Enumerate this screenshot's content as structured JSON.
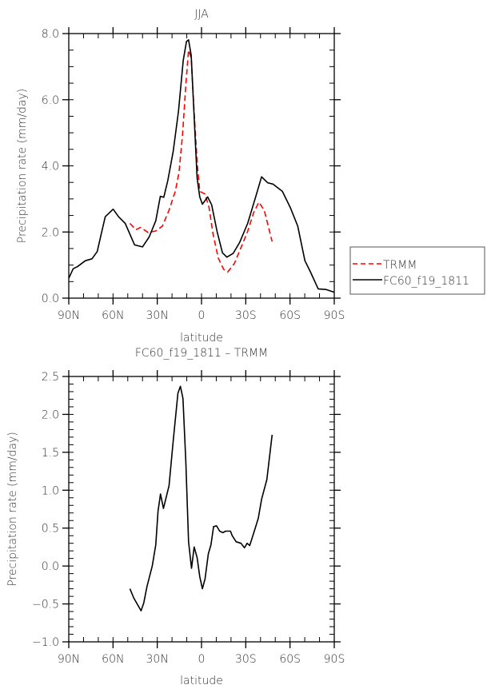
{
  "chart_data": [
    {
      "type": "line",
      "title": "JJA",
      "xlabel": "latitude",
      "ylabel": "Precipitation rate (mm/day)",
      "xlim": [
        90,
        -90
      ],
      "ylim": [
        0,
        8
      ],
      "xticks": [
        90,
        60,
        30,
        0,
        -30,
        -60,
        -90
      ],
      "xtick_labels": [
        "90N",
        "60N",
        "30N",
        "0",
        "30S",
        "60S",
        "90S"
      ],
      "yticks": [
        0,
        2,
        4,
        6,
        8
      ],
      "ytick_labels": [
        "0.0",
        "2.0",
        "4.0",
        "6.0",
        "8.0"
      ],
      "legend_position": "right",
      "series": [
        {
          "name": "TRMM",
          "color": "#ff0000",
          "dash": "dashed",
          "x": [
            48.5,
            44.5,
            41.3,
            36.4,
            31,
            26.5,
            22,
            17.8,
            15.3,
            12.9,
            10.6,
            8.8,
            7,
            4.8,
            3,
            1.2,
            -2.4,
            -5.1,
            -7.8,
            -11.4,
            -15,
            -17.8,
            -22.3,
            -26.8,
            -31.3,
            -35.3,
            -38.9,
            -42.5,
            -47.9
          ],
          "y": [
            2.26,
            2.07,
            2.14,
            1.99,
            2.03,
            2.18,
            2.66,
            3.23,
            3.79,
            4.92,
            6.45,
            7.5,
            7.26,
            5.48,
            4.11,
            3.23,
            3.15,
            2.74,
            1.94,
            1.21,
            0.87,
            0.79,
            1.05,
            1.53,
            2.02,
            2.58,
            2.9,
            2.66,
            1.71
          ]
        },
        {
          "name": "FC60_f19_1811",
          "color": "#000000",
          "dash": "solid",
          "x": [
            90,
            87,
            84.2,
            78.8,
            74.3,
            70.7,
            68,
            65.3,
            59.9,
            56.2,
            51.7,
            45.4,
            40,
            35.5,
            31,
            27.9,
            25.6,
            22.9,
            19.2,
            15.6,
            12.4,
            10.2,
            8.8,
            7,
            4.8,
            3,
            1.2,
            -0.6,
            -4.2,
            -6.9,
            -10.5,
            -14.2,
            -17.2,
            -21.4,
            -25.9,
            -31.3,
            -36.7,
            -40.7,
            -44.8,
            -48.4,
            -54.8,
            -60.2,
            -65.2,
            -70.1,
            -73.7,
            -79.1,
            -84.5,
            -90
          ],
          "y": [
            0.6,
            0.89,
            0.95,
            1.13,
            1.19,
            1.41,
            1.94,
            2.46,
            2.69,
            2.46,
            2.26,
            1.61,
            1.55,
            1.85,
            2.34,
            3.08,
            3.05,
            3.55,
            4.44,
            5.65,
            7.18,
            7.76,
            7.81,
            7.34,
            5.32,
            3.63,
            3.06,
            2.84,
            3.06,
            2.82,
            2.02,
            1.37,
            1.24,
            1.35,
            1.69,
            2.26,
            3.06,
            3.67,
            3.49,
            3.45,
            3.23,
            2.74,
            2.18,
            1.13,
            0.81,
            0.28,
            0.26,
            0.18
          ]
        }
      ]
    },
    {
      "type": "line",
      "title": "FC60_f19_1811 – TRMM",
      "xlabel": "latitude",
      "ylabel": "Precipitation rate (mm/day)",
      "xlim": [
        90,
        -90
      ],
      "ylim": [
        -1,
        2.5
      ],
      "xticks": [
        90,
        60,
        30,
        0,
        -30,
        -60,
        -90
      ],
      "xtick_labels": [
        "90N",
        "60N",
        "30N",
        "0",
        "30S",
        "60S",
        "90S"
      ],
      "yticks": [
        -1,
        -0.5,
        0,
        0.5,
        1,
        1.5,
        2,
        2.5
      ],
      "ytick_labels": [
        "−1.0",
        "−0.5",
        "0.0",
        "0.5",
        "1.0",
        "1.5",
        "2.0",
        "2.5"
      ],
      "series": [
        {
          "name": "FC60_f19_1811 - TRMM",
          "color": "#000000",
          "dash": "solid",
          "x": [
            48.5,
            46,
            41,
            39.2,
            37,
            33.4,
            31,
            29.5,
            27.8,
            25.8,
            22,
            19.2,
            16,
            14.3,
            12.6,
            10.6,
            8.8,
            6.8,
            5,
            3,
            1.2,
            -0.6,
            -2.4,
            -4.6,
            -6.4,
            -8.2,
            -10.2,
            -12.3,
            -14.5,
            -16.3,
            -19.6,
            -20.8,
            -23.5,
            -26.8,
            -29.1,
            -30.9,
            -32.7,
            -35.8,
            -38.5,
            -40.7,
            -44.3,
            -47.9
          ],
          "y": [
            -0.3,
            -0.42,
            -0.59,
            -0.49,
            -0.27,
            0,
            0.28,
            0.72,
            0.95,
            0.76,
            1.06,
            1.65,
            2.28,
            2.37,
            2.21,
            1.37,
            0.32,
            -0.03,
            0.25,
            0.11,
            -0.14,
            -0.3,
            -0.17,
            0.16,
            0.28,
            0.52,
            0.53,
            0.46,
            0.44,
            0.46,
            0.46,
            0.4,
            0.32,
            0.3,
            0.24,
            0.3,
            0.27,
            0.46,
            0.63,
            0.88,
            1.14,
            1.73
          ]
        }
      ]
    }
  ]
}
